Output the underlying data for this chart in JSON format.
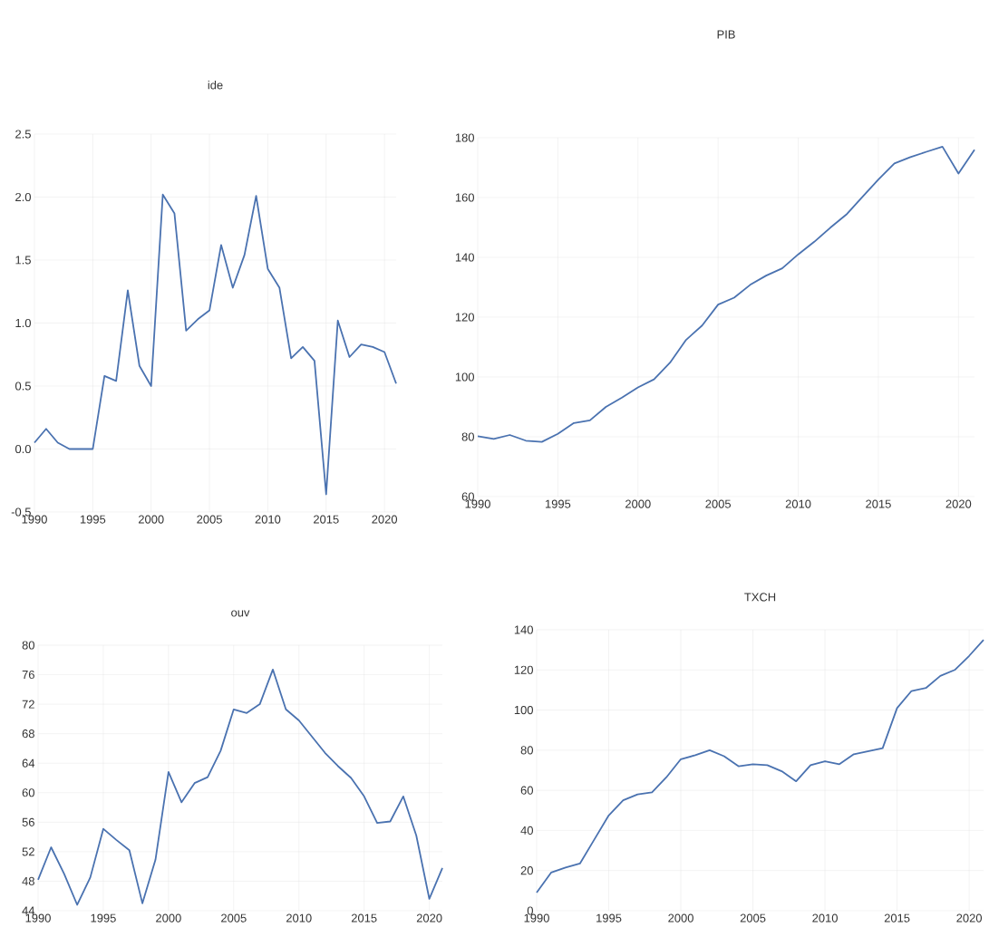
{
  "chart_data": [
    {
      "type": "line",
      "title": "ide",
      "color": "#4a72b0",
      "grid": true,
      "x": [
        1990,
        1991,
        1992,
        1993,
        1994,
        1995,
        1996,
        1997,
        1998,
        1999,
        2000,
        2001,
        2002,
        2003,
        2004,
        2005,
        2006,
        2007,
        2008,
        2009,
        2010,
        2011,
        2012,
        2013,
        2014,
        2015,
        2016,
        2017,
        2018,
        2019,
        2020,
        2021
      ],
      "values": [
        0.05,
        0.16,
        0.05,
        0.0,
        0.0,
        0.0,
        0.58,
        0.54,
        1.26,
        0.66,
        0.5,
        2.02,
        1.87,
        0.94,
        1.03,
        1.1,
        1.62,
        1.28,
        1.54,
        2.01,
        1.43,
        1.28,
        0.72,
        0.81,
        0.7,
        -0.36,
        1.02,
        0.73,
        0.83,
        0.81,
        0.77,
        0.52
      ],
      "xlim": [
        1990,
        2021
      ],
      "xticks": [
        1990,
        1995,
        2000,
        2005,
        2010,
        2015,
        2020
      ],
      "ylim": [
        -0.5,
        2.5
      ],
      "yticks": [
        -0.5,
        {
          "value": 0,
          "label": "0.0"
        },
        0.5,
        {
          "value": 1,
          "label": "1.0"
        },
        1.5,
        {
          "value": 2,
          "label": "2.0"
        },
        2.5
      ]
    },
    {
      "type": "line",
      "title": "PIB",
      "color": "#4a72b0",
      "grid": true,
      "x": [
        1990,
        1991,
        1992,
        1993,
        1994,
        1995,
        1996,
        1997,
        1998,
        1999,
        2000,
        2001,
        2002,
        2003,
        2004,
        2005,
        2006,
        2007,
        2008,
        2009,
        2010,
        2011,
        2012,
        2013,
        2014,
        2015,
        2016,
        2017,
        2018,
        2019,
        2020,
        2021
      ],
      "values": [
        80.2,
        79.3,
        80.6,
        78.7,
        78.3,
        81.0,
        84.6,
        85.5,
        90.0,
        93.1,
        96.5,
        99.2,
        104.8,
        112.4,
        117.2,
        124.2,
        126.5,
        130.8,
        133.9,
        136.3,
        141.0,
        145.2,
        149.9,
        154.3,
        160.2,
        166.0,
        171.4,
        173.5,
        175.3,
        177.0,
        168.0,
        176.0
      ],
      "xlim": [
        1990,
        2021
      ],
      "xticks": [
        1990,
        1995,
        2000,
        2005,
        2010,
        2015,
        2020
      ],
      "ylim": [
        60,
        180
      ],
      "yticks": [
        60,
        80,
        100,
        120,
        140,
        160,
        180
      ]
    },
    {
      "type": "line",
      "title": "ouv",
      "color": "#4a72b0",
      "grid": true,
      "x": [
        1990,
        1991,
        1992,
        1993,
        1994,
        1995,
        1996,
        1997,
        1998,
        1999,
        2000,
        2001,
        2002,
        2003,
        2004,
        2005,
        2006,
        2007,
        2008,
        2009,
        2010,
        2011,
        2012,
        2013,
        2014,
        2015,
        2016,
        2017,
        2018,
        2019,
        2020,
        2021
      ],
      "values": [
        48.2,
        52.6,
        49.0,
        44.8,
        48.5,
        55.1,
        53.6,
        52.2,
        45.0,
        50.9,
        62.8,
        58.7,
        61.3,
        62.1,
        65.7,
        71.3,
        70.8,
        72.0,
        76.7,
        71.3,
        69.8,
        67.6,
        65.4,
        63.6,
        62.0,
        59.5,
        55.9,
        56.1,
        59.5,
        54.2,
        45.6,
        49.8
      ],
      "xlim": [
        1990,
        2021
      ],
      "xticks": [
        1990,
        1995,
        2000,
        2005,
        2010,
        2015,
        2020
      ],
      "ylim": [
        44,
        80
      ],
      "yticks": [
        44,
        48,
        52,
        56,
        60,
        64,
        68,
        72,
        76,
        80
      ]
    },
    {
      "type": "line",
      "title": "TXCH",
      "color": "#4a72b0",
      "grid": true,
      "x": [
        1990,
        1991,
        1992,
        1993,
        1994,
        1995,
        1996,
        1997,
        1998,
        1999,
        2000,
        2001,
        2002,
        2003,
        2004,
        2005,
        2006,
        2007,
        2008,
        2009,
        2010,
        2011,
        2012,
        2013,
        2014,
        2015,
        2016,
        2017,
        2018,
        2019,
        2020,
        2021
      ],
      "values": [
        9,
        19,
        21.5,
        23.5,
        35.5,
        47.5,
        55,
        58,
        59,
        66.5,
        75.5,
        77.5,
        80,
        77,
        72,
        73,
        72.5,
        69.5,
        64.5,
        72.5,
        74.5,
        73,
        78,
        79.5,
        81,
        101,
        109.5,
        111,
        117,
        120,
        127,
        135
      ],
      "xlim": [
        1990,
        2021
      ],
      "xticks": [
        1990,
        1995,
        2000,
        2005,
        2010,
        2015,
        2020
      ],
      "ylim": [
        0,
        140
      ],
      "yticks": [
        0,
        20,
        40,
        60,
        80,
        100,
        120,
        140
      ]
    }
  ]
}
